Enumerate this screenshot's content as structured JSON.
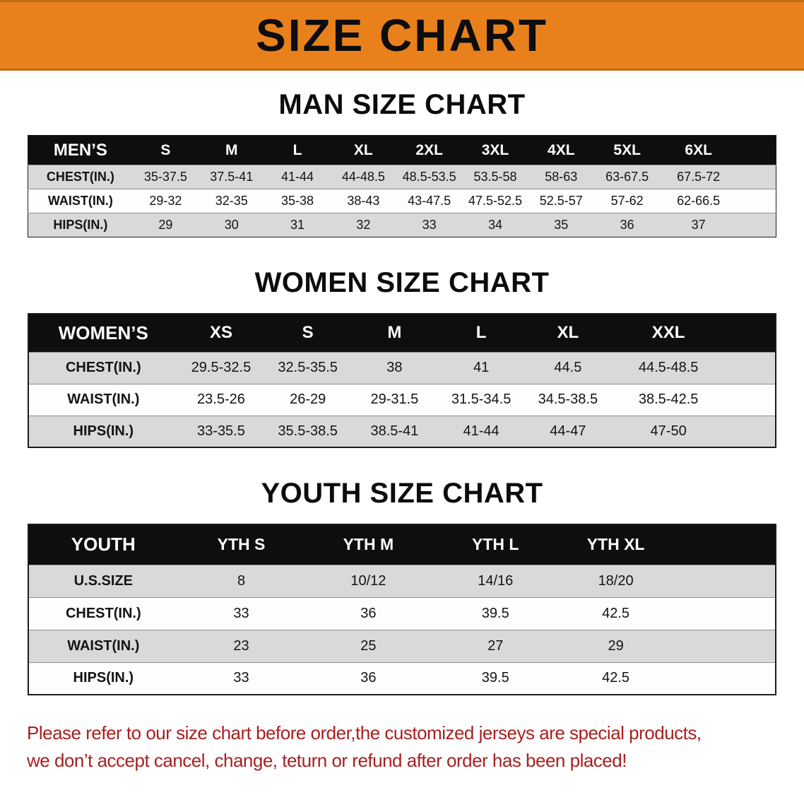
{
  "banner": {
    "title": "SIZE CHART",
    "background_color": "#e8811c"
  },
  "chart_data": [
    {
      "type": "table",
      "title": "MAN SIZE CHART",
      "header": [
        "MEN’S",
        "S",
        "M",
        "L",
        "XL",
        "2XL",
        "3XL",
        "4XL",
        "5XL",
        "6XL"
      ],
      "rows": [
        [
          "CHEST(IN.)",
          "35-37.5",
          "37.5-41",
          "41-44",
          "44-48.5",
          "48.5-53.5",
          "53.5-58",
          "58-63",
          "63-67.5",
          "67.5-72"
        ],
        [
          "WAIST(IN.)",
          "29-32",
          "32-35",
          "35-38",
          "38-43",
          "43-47.5",
          "47.5-52.5",
          "52.5-57",
          "57-62",
          "62-66.5"
        ],
        [
          "HIPS(IN.)",
          "29",
          "30",
          "31",
          "32",
          "33",
          "34",
          "35",
          "36",
          "37"
        ]
      ]
    },
    {
      "type": "table",
      "title": "WOMEN SIZE CHART",
      "header": [
        "WOMEN’S",
        "XS",
        "S",
        "M",
        "L",
        "XL",
        "XXL"
      ],
      "rows": [
        [
          "CHEST(IN.)",
          "29.5-32.5",
          "32.5-35.5",
          "38",
          "41",
          "44.5",
          "44.5-48.5"
        ],
        [
          "WAIST(IN.)",
          "23.5-26",
          "26-29",
          "29-31.5",
          "31.5-34.5",
          "34.5-38.5",
          "38.5-42.5"
        ],
        [
          "HIPS(IN.)",
          "33-35.5",
          "35.5-38.5",
          "38.5-41",
          "41-44",
          "44-47",
          "47-50"
        ]
      ]
    },
    {
      "type": "table",
      "title": "YOUTH SIZE CHART",
      "header": [
        "YOUTH",
        "YTH S",
        "YTH M",
        "YTH L",
        "YTH XL"
      ],
      "rows": [
        [
          "U.S.SIZE",
          "8",
          "10/12",
          "14/16",
          "18/20"
        ],
        [
          "CHEST(IN.)",
          "33",
          "36",
          "39.5",
          "42.5"
        ],
        [
          "WAIST(IN.)",
          "23",
          "25",
          "27",
          "29"
        ],
        [
          "HIPS(IN.)",
          "33",
          "36",
          "39.5",
          "42.5"
        ]
      ]
    }
  ],
  "disclaimer": {
    "line1": "Please refer to our size chart before order,the customized jerseys are special products,",
    "line2": "we don’t accept cancel, change, teturn or refund after order has been placed!",
    "color": "#a82020"
  }
}
